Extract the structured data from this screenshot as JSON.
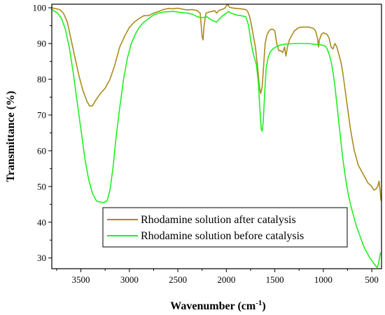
{
  "chart_data": {
    "type": "line",
    "title": "",
    "xlabel": "Wavenumber (cm",
    "xlabel_sup": "-1",
    "xlabel_close": ")",
    "ylabel": "Transmittance (%)",
    "xlim": [
      3800,
      400
    ],
    "x_reversed": true,
    "ylim": [
      27,
      101
    ],
    "x_ticks": [
      3500,
      3000,
      2500,
      2000,
      1500,
      1000,
      500
    ],
    "y_ticks": [
      30,
      40,
      50,
      60,
      70,
      80,
      90,
      100
    ],
    "grid": false,
    "legend_position": "bottom-center",
    "series": [
      {
        "name": "Rhodamine solution after catalysis",
        "color": "#a88b1e",
        "points": [
          [
            3800,
            100
          ],
          [
            3720,
            99.5
          ],
          [
            3680,
            98.5
          ],
          [
            3640,
            96
          ],
          [
            3600,
            91
          ],
          [
            3560,
            86
          ],
          [
            3520,
            81
          ],
          [
            3480,
            77
          ],
          [
            3440,
            74
          ],
          [
            3410,
            72.5
          ],
          [
            3380,
            72.6
          ],
          [
            3350,
            74
          ],
          [
            3300,
            76
          ],
          [
            3250,
            77.5
          ],
          [
            3200,
            80
          ],
          [
            3150,
            84
          ],
          [
            3100,
            89
          ],
          [
            3050,
            92
          ],
          [
            3000,
            94.5
          ],
          [
            2950,
            96
          ],
          [
            2900,
            97
          ],
          [
            2850,
            97.8
          ],
          [
            2800,
            97.8
          ],
          [
            2750,
            98.5
          ],
          [
            2700,
            99
          ],
          [
            2650,
            99.5
          ],
          [
            2600,
            99.8
          ],
          [
            2550,
            99.7
          ],
          [
            2500,
            99.9
          ],
          [
            2450,
            99.6
          ],
          [
            2400,
            99.4
          ],
          [
            2350,
            99.5
          ],
          [
            2300,
            99.2
          ],
          [
            2270,
            98.5
          ],
          [
            2250,
            92
          ],
          [
            2240,
            91
          ],
          [
            2230,
            95
          ],
          [
            2210,
            98.5
          ],
          [
            2180,
            98.8
          ],
          [
            2150,
            99
          ],
          [
            2120,
            99.2
          ],
          [
            2100,
            98.5
          ],
          [
            2080,
            99.2
          ],
          [
            2050,
            99.5
          ],
          [
            2020,
            99.8
          ],
          [
            2000,
            100.5
          ],
          [
            1985,
            101
          ],
          [
            1970,
            100.2
          ],
          [
            1950,
            100
          ],
          [
            1900,
            99.8
          ],
          [
            1850,
            99.7
          ],
          [
            1800,
            99.5
          ],
          [
            1780,
            99
          ],
          [
            1760,
            97.5
          ],
          [
            1740,
            95
          ],
          [
            1720,
            92
          ],
          [
            1700,
            89
          ],
          [
            1680,
            84
          ],
          [
            1660,
            78
          ],
          [
            1645,
            76
          ],
          [
            1630,
            78
          ],
          [
            1615,
            84
          ],
          [
            1600,
            90
          ],
          [
            1580,
            92.5
          ],
          [
            1560,
            93.5
          ],
          [
            1540,
            94
          ],
          [
            1520,
            94
          ],
          [
            1500,
            93.5
          ],
          [
            1480,
            90
          ],
          [
            1460,
            88
          ],
          [
            1440,
            88
          ],
          [
            1420,
            87.5
          ],
          [
            1400,
            89
          ],
          [
            1385,
            86.5
          ],
          [
            1370,
            89
          ],
          [
            1350,
            91
          ],
          [
            1320,
            92.5
          ],
          [
            1300,
            93.5
          ],
          [
            1250,
            94.5
          ],
          [
            1200,
            94.6
          ],
          [
            1150,
            94.6
          ],
          [
            1100,
            94.2
          ],
          [
            1080,
            93.5
          ],
          [
            1060,
            91.5
          ],
          [
            1050,
            89
          ],
          [
            1040,
            91
          ],
          [
            1020,
            92.5
          ],
          [
            1000,
            93
          ],
          [
            980,
            92.8
          ],
          [
            960,
            92.5
          ],
          [
            940,
            91.5
          ],
          [
            920,
            89
          ],
          [
            900,
            88.5
          ],
          [
            880,
            90
          ],
          [
            860,
            89
          ],
          [
            840,
            87
          ],
          [
            820,
            85
          ],
          [
            800,
            82
          ],
          [
            780,
            78
          ],
          [
            760,
            74
          ],
          [
            740,
            70
          ],
          [
            720,
            66
          ],
          [
            700,
            63
          ],
          [
            680,
            60
          ],
          [
            660,
            58
          ],
          [
            640,
            56
          ],
          [
            620,
            55
          ],
          [
            600,
            54
          ],
          [
            580,
            53
          ],
          [
            560,
            52
          ],
          [
            540,
            51
          ],
          [
            520,
            50.5
          ],
          [
            500,
            50
          ],
          [
            480,
            49
          ],
          [
            460,
            49.2
          ],
          [
            440,
            50
          ],
          [
            425,
            51.5
          ],
          [
            415,
            49
          ],
          [
            405,
            46
          ]
        ]
      },
      {
        "name": "Rhodamine solution before catalysis",
        "color": "#22ee22",
        "points": [
          [
            3800,
            99.5
          ],
          [
            3740,
            98.5
          ],
          [
            3700,
            97
          ],
          [
            3660,
            94
          ],
          [
            3620,
            89
          ],
          [
            3580,
            82
          ],
          [
            3540,
            74
          ],
          [
            3500,
            66
          ],
          [
            3460,
            58
          ],
          [
            3420,
            52
          ],
          [
            3380,
            48
          ],
          [
            3340,
            46
          ],
          [
            3300,
            45.6
          ],
          [
            3260,
            45.5
          ],
          [
            3230,
            46
          ],
          [
            3200,
            49
          ],
          [
            3170,
            55
          ],
          [
            3140,
            63
          ],
          [
            3100,
            72
          ],
          [
            3060,
            80
          ],
          [
            3020,
            86
          ],
          [
            2980,
            90
          ],
          [
            2940,
            92.5
          ],
          [
            2900,
            94.5
          ],
          [
            2850,
            96
          ],
          [
            2800,
            97
          ],
          [
            2750,
            98
          ],
          [
            2700,
            98.5
          ],
          [
            2650,
            98.8
          ],
          [
            2600,
            98.9
          ],
          [
            2550,
            99
          ],
          [
            2500,
            98.8
          ],
          [
            2450,
            98.6
          ],
          [
            2400,
            98.5
          ],
          [
            2350,
            98.2
          ],
          [
            2300,
            97.5
          ],
          [
            2250,
            97.2
          ],
          [
            2200,
            97.5
          ],
          [
            2150,
            96.5
          ],
          [
            2100,
            96
          ],
          [
            2050,
            97.5
          ],
          [
            2000,
            98.5
          ],
          [
            1980,
            99
          ],
          [
            1960,
            98.6
          ],
          [
            1900,
            98
          ],
          [
            1850,
            97.8
          ],
          [
            1800,
            97.5
          ],
          [
            1770,
            95
          ],
          [
            1750,
            91
          ],
          [
            1730,
            88
          ],
          [
            1710,
            86
          ],
          [
            1690,
            84
          ],
          [
            1670,
            79
          ],
          [
            1655,
            72
          ],
          [
            1640,
            66
          ],
          [
            1630,
            65.5
          ],
          [
            1620,
            68
          ],
          [
            1605,
            76
          ],
          [
            1590,
            83
          ],
          [
            1570,
            86
          ],
          [
            1550,
            87.5
          ],
          [
            1520,
            88.5
          ],
          [
            1480,
            89.2
          ],
          [
            1440,
            89.6
          ],
          [
            1400,
            89.8
          ],
          [
            1350,
            89.9
          ],
          [
            1300,
            90
          ],
          [
            1250,
            90
          ],
          [
            1200,
            90
          ],
          [
            1150,
            90
          ],
          [
            1100,
            89.8
          ],
          [
            1050,
            89.7
          ],
          [
            1000,
            89.5
          ],
          [
            980,
            89.3
          ],
          [
            960,
            88.5
          ],
          [
            940,
            87
          ],
          [
            920,
            85
          ],
          [
            900,
            82
          ],
          [
            880,
            78
          ],
          [
            860,
            73
          ],
          [
            840,
            68
          ],
          [
            820,
            63
          ],
          [
            800,
            58
          ],
          [
            780,
            54
          ],
          [
            760,
            50.5
          ],
          [
            740,
            47.5
          ],
          [
            720,
            45
          ],
          [
            700,
            43
          ],
          [
            680,
            41
          ],
          [
            660,
            39
          ],
          [
            640,
            37.5
          ],
          [
            620,
            36
          ],
          [
            600,
            34.5
          ],
          [
            580,
            33
          ],
          [
            560,
            32
          ],
          [
            540,
            31
          ],
          [
            520,
            30
          ],
          [
            500,
            29.3
          ],
          [
            480,
            28.5
          ],
          [
            460,
            27.8
          ],
          [
            445,
            27.3
          ],
          [
            430,
            28.5
          ],
          [
            418,
            30.5
          ],
          [
            408,
            31.5
          ]
        ]
      }
    ]
  }
}
